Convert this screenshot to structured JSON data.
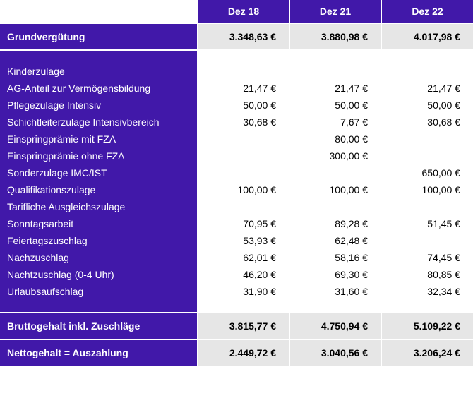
{
  "columns": [
    "Dez 18",
    "Dez 21",
    "Dez 22"
  ],
  "grund": {
    "label": "Grundvergütung",
    "values": [
      "3.348,63 €",
      "3.880,98 €",
      "4.017,98 €"
    ]
  },
  "rows": [
    {
      "label": "Kinderzulage",
      "values": [
        "",
        "",
        ""
      ]
    },
    {
      "label": "AG-Anteil zur Vermögensbildung",
      "values": [
        "21,47 €",
        "21,47 €",
        "21,47 €"
      ]
    },
    {
      "label": "Pflegezulage Intensiv",
      "values": [
        "50,00 €",
        "50,00 €",
        "50,00 €"
      ]
    },
    {
      "label": "Schichtleiterzulage Intensivbereich",
      "values": [
        "30,68 €",
        "7,67 €",
        "30,68 €"
      ]
    },
    {
      "label": "Einspringprämie mit FZA",
      "values": [
        "",
        "80,00 €",
        ""
      ]
    },
    {
      "label": "Einspringprämie ohne FZA",
      "values": [
        "",
        "300,00 €",
        ""
      ]
    },
    {
      "label": "Sonderzulage IMC/IST",
      "values": [
        "",
        "",
        "650,00 €"
      ]
    },
    {
      "label": "Qualifikationszulage",
      "values": [
        "100,00 €",
        "100,00 €",
        "100,00 €"
      ]
    },
    {
      "label": "Tarifliche Ausgleichszulage",
      "values": [
        "",
        "",
        ""
      ]
    },
    {
      "label": "Sonntagsarbeit",
      "values": [
        "70,95 €",
        "89,28 €",
        "51,45 €"
      ]
    },
    {
      "label": "Feiertagszuschlag",
      "values": [
        "53,93 €",
        "62,48 €",
        ""
      ]
    },
    {
      "label": "Nachzuschlag",
      "values": [
        "62,01 €",
        "58,16 €",
        "74,45 €"
      ]
    },
    {
      "label": "Nachtzuschlag (0-4 Uhr)",
      "values": [
        "46,20 €",
        "69,30 €",
        "80,85 €"
      ]
    },
    {
      "label": "Urlaubsaufschlag",
      "values": [
        "31,90 €",
        "31,60 €",
        "32,34 €"
      ]
    }
  ],
  "brutto": {
    "label": "Bruttogehalt inkl. Zuschläge",
    "values": [
      "3.815,77 €",
      "4.750,94 €",
      "5.109,22 €"
    ]
  },
  "netto": {
    "label": "Nettogehalt = Auszahlung",
    "values": [
      "2.449,72 €",
      "3.040,56 €",
      "3.206,24 €"
    ]
  },
  "colors": {
    "purple": "#4118a9",
    "grey": "#e6e6e6",
    "white": "#ffffff",
    "text_dark": "#000000"
  }
}
